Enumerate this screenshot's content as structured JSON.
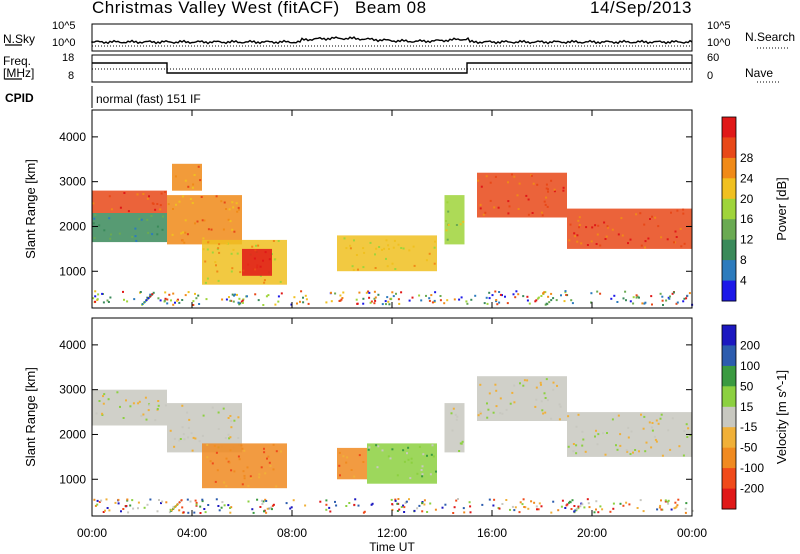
{
  "header": {
    "station": "Christmas Valley West (fitACF)",
    "beam": "Beam 08",
    "date": "14/Sep/2013"
  },
  "top_panel": {
    "nsky_label": "N.Sky",
    "nsearch_label": "N.Search",
    "freq_label_1": "Freq.",
    "freq_label_2": "[MHz]",
    "nave_label": "Nave",
    "cpid_label": "CPID",
    "cpid_value": "normal (fast) 151 IF",
    "nsky_ticks": [
      "10^5",
      "10^0"
    ],
    "nsearch_ticks": [
      "10^5",
      "10^0"
    ],
    "freq_ticks": [
      "18",
      "8"
    ],
    "nave_ticks": [
      "60",
      "0"
    ]
  },
  "colors": {
    "power": [
      "#1c18e8",
      "#2c7bbd",
      "#3a8a5a",
      "#6aaa52",
      "#9fd43a",
      "#f0c020",
      "#f08a18",
      "#e84818",
      "#e01818"
    ],
    "velocity": [
      "#e01818",
      "#f04a1a",
      "#f08a20",
      "#f0b038",
      "#c8c8c0",
      "#8cd040",
      "#3a9a40",
      "#2c5cae",
      "#1c18c0"
    ]
  },
  "chart_data": [
    {
      "type": "heatmap",
      "name": "power",
      "xlabel": "",
      "ylabel": "Slant Range [km]",
      "xlim": [
        0,
        24
      ],
      "ylim": [
        180,
        4600
      ],
      "yticks": [
        "1000",
        "2000",
        "3000",
        "4000"
      ],
      "colorbar_label": "Power [dB]",
      "colorbar_ticks": [
        "4",
        "8",
        "12",
        "16",
        "20",
        "24",
        "28"
      ],
      "regions": [
        {
          "t0": 0.0,
          "t1": 3.0,
          "r0": 2300,
          "r1": 2800,
          "level": 7
        },
        {
          "t0": 0.0,
          "t1": 3.0,
          "r0": 1650,
          "r1": 2300,
          "level": 2
        },
        {
          "t0": 3.0,
          "t1": 6.0,
          "r0": 1600,
          "r1": 2700,
          "level": 6
        },
        {
          "t0": 3.2,
          "t1": 4.4,
          "r0": 2800,
          "r1": 3400,
          "level": 6
        },
        {
          "t0": 4.4,
          "t1": 7.8,
          "r0": 700,
          "r1": 1700,
          "level": 5
        },
        {
          "t0": 6.0,
          "t1": 7.2,
          "r0": 900,
          "r1": 1500,
          "level": 8
        },
        {
          "t0": 9.8,
          "t1": 13.8,
          "r0": 1000,
          "r1": 1800,
          "level": 5
        },
        {
          "t0": 14.1,
          "t1": 14.9,
          "r0": 1600,
          "r1": 2700,
          "level": 4
        },
        {
          "t0": 15.4,
          "t1": 19.0,
          "r0": 2200,
          "r1": 3200,
          "level": 7
        },
        {
          "t0": 19.0,
          "t1": 24.0,
          "r0": 1500,
          "r1": 2400,
          "level": 7
        }
      ]
    },
    {
      "type": "heatmap",
      "name": "velocity",
      "xlabel": "Time UT",
      "ylabel": "Slant Range [km]",
      "xlim": [
        0,
        24
      ],
      "ylim": [
        180,
        4600
      ],
      "xticks": [
        "00:00",
        "04:00",
        "08:00",
        "12:00",
        "16:00",
        "20:00",
        "00:00"
      ],
      "yticks": [
        "1000",
        "2000",
        "3000",
        "4000"
      ],
      "colorbar_label": "Velocity [m s^-1]",
      "colorbar_ticks": [
        "200",
        "100",
        "50",
        "15",
        "-15",
        "-50",
        "-100",
        "-200"
      ],
      "regions": [
        {
          "t0": 0.0,
          "t1": 3.0,
          "r0": 2200,
          "r1": 3000,
          "level": 4
        },
        {
          "t0": 3.0,
          "t1": 6.0,
          "r0": 1600,
          "r1": 2700,
          "level": 4
        },
        {
          "t0": 4.4,
          "t1": 7.8,
          "r0": 800,
          "r1": 1800,
          "level": 2
        },
        {
          "t0": 9.8,
          "t1": 11.0,
          "r0": 1000,
          "r1": 1700,
          "level": 2
        },
        {
          "t0": 11.0,
          "t1": 13.8,
          "r0": 900,
          "r1": 1800,
          "level": 5
        },
        {
          "t0": 14.1,
          "t1": 14.9,
          "r0": 1600,
          "r1": 2700,
          "level": 4
        },
        {
          "t0": 15.4,
          "t1": 19.0,
          "r0": 2300,
          "r1": 3300,
          "level": 4
        },
        {
          "t0": 19.0,
          "t1": 24.0,
          "r0": 1500,
          "r1": 2500,
          "level": 4
        }
      ]
    }
  ]
}
